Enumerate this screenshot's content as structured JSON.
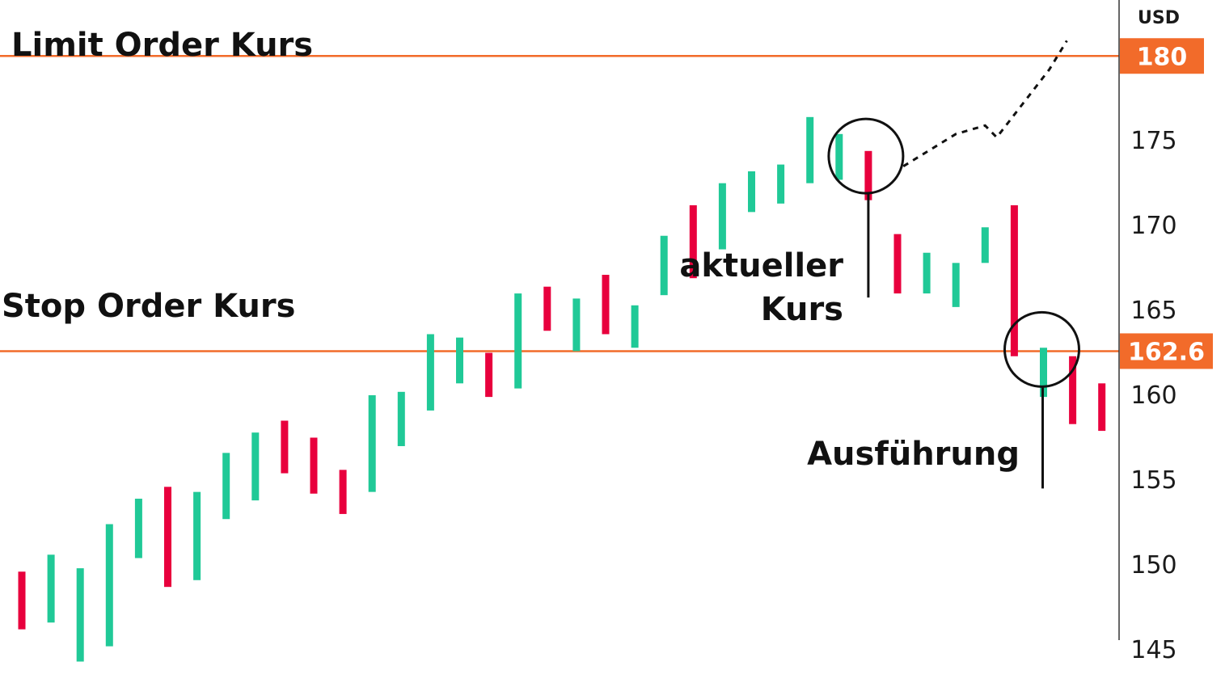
{
  "chart_data": {
    "type": "bar",
    "title": "",
    "unit_label": "USD",
    "ylim": [
      142.8,
      183.3
    ],
    "y_ticks": [
      145,
      150,
      155,
      160,
      165,
      170,
      175
    ],
    "levels": [
      {
        "name": "Limit Order Kurs",
        "value": 180,
        "badge": "180"
      },
      {
        "name": "Stop Order Kurs",
        "value": 162.6,
        "badge": "162.6"
      }
    ],
    "colors": {
      "up": "#20c997",
      "down": "#e8003d",
      "level": "#f26b2a",
      "axis": "#333333",
      "text": "#111111"
    },
    "bars": [
      {
        "low": 146.2,
        "high": 149.6,
        "dir": "down"
      },
      {
        "low": 146.6,
        "high": 150.6,
        "dir": "up"
      },
      {
        "low": 144.3,
        "high": 149.8,
        "dir": "up"
      },
      {
        "low": 145.2,
        "high": 152.4,
        "dir": "up"
      },
      {
        "low": 150.4,
        "high": 153.9,
        "dir": "up"
      },
      {
        "low": 148.7,
        "high": 154.6,
        "dir": "down"
      },
      {
        "low": 149.1,
        "high": 154.3,
        "dir": "up"
      },
      {
        "low": 152.7,
        "high": 156.6,
        "dir": "up"
      },
      {
        "low": 153.8,
        "high": 157.8,
        "dir": "up"
      },
      {
        "low": 155.4,
        "high": 158.5,
        "dir": "down"
      },
      {
        "low": 154.2,
        "high": 157.5,
        "dir": "down"
      },
      {
        "low": 153.0,
        "high": 155.6,
        "dir": "down"
      },
      {
        "low": 154.3,
        "high": 160.0,
        "dir": "up"
      },
      {
        "low": 157.0,
        "high": 160.2,
        "dir": "up"
      },
      {
        "low": 159.1,
        "high": 163.6,
        "dir": "up"
      },
      {
        "low": 160.7,
        "high": 163.4,
        "dir": "up"
      },
      {
        "low": 159.9,
        "high": 162.5,
        "dir": "down"
      },
      {
        "low": 160.4,
        "high": 166.0,
        "dir": "up"
      },
      {
        "low": 163.8,
        "high": 166.4,
        "dir": "down"
      },
      {
        "low": 162.6,
        "high": 165.7,
        "dir": "up"
      },
      {
        "low": 163.6,
        "high": 167.1,
        "dir": "down"
      },
      {
        "low": 162.8,
        "high": 165.3,
        "dir": "up"
      },
      {
        "low": 165.9,
        "high": 169.4,
        "dir": "up"
      },
      {
        "low": 166.9,
        "high": 171.2,
        "dir": "down"
      },
      {
        "low": 168.6,
        "high": 172.5,
        "dir": "up"
      },
      {
        "low": 170.8,
        "high": 173.2,
        "dir": "up"
      },
      {
        "low": 171.3,
        "high": 173.6,
        "dir": "up"
      },
      {
        "low": 172.5,
        "high": 176.4,
        "dir": "up"
      },
      {
        "low": 172.7,
        "high": 175.4,
        "dir": "up"
      },
      {
        "low": 171.5,
        "high": 174.4,
        "dir": "down"
      },
      {
        "low": 166.0,
        "high": 169.5,
        "dir": "down"
      },
      {
        "low": 166.0,
        "high": 168.4,
        "dir": "up"
      },
      {
        "low": 165.2,
        "high": 167.8,
        "dir": "up"
      },
      {
        "low": 167.8,
        "high": 169.9,
        "dir": "up"
      },
      {
        "low": 162.3,
        "high": 171.2,
        "dir": "down"
      },
      {
        "low": 159.9,
        "high": 162.8,
        "dir": "up"
      },
      {
        "low": 158.3,
        "high": 162.3,
        "dir": "down"
      },
      {
        "low": 157.9,
        "high": 160.7,
        "dir": "down"
      }
    ],
    "projection": [
      {
        "i": 30.2,
        "v": 173.5
      },
      {
        "i": 32.0,
        "v": 175.4
      },
      {
        "i": 33.0,
        "v": 175.9
      },
      {
        "i": 33.4,
        "v": 175.2
      },
      {
        "i": 35.2,
        "v": 179.2
      },
      {
        "i": 35.8,
        "v": 180.9
      }
    ],
    "annotations": [
      {
        "lines": [
          "aktueller",
          "Kurs"
        ],
        "bar": 29
      },
      {
        "lines": [
          "Ausführung"
        ],
        "bar": 35
      }
    ]
  }
}
